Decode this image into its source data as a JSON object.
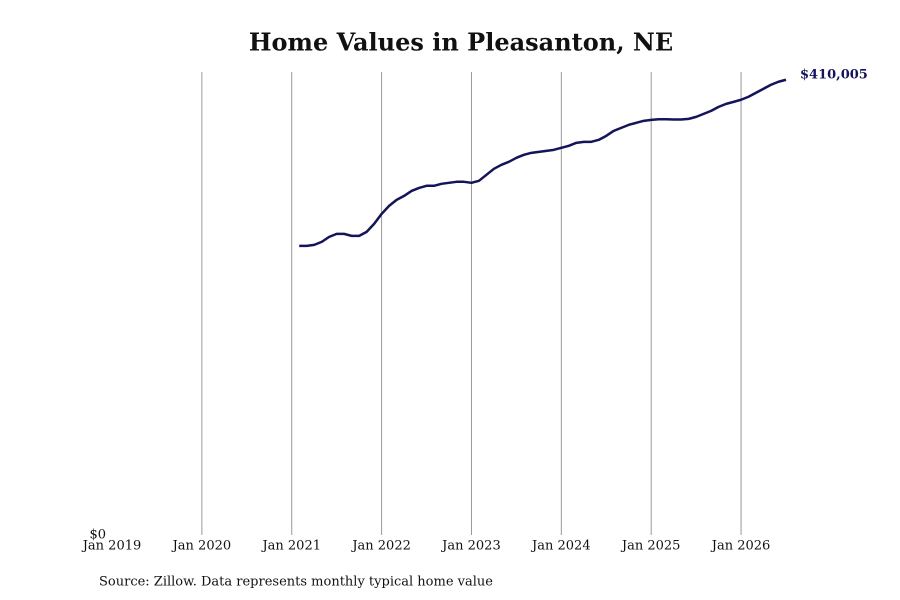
{
  "chart_data": {
    "type": "line",
    "title": "Home Values in Pleasanton, NE",
    "source": "Source: Zillow. Data represents monthly typical home value",
    "x": [
      "2021-02",
      "2021-03",
      "2021-04",
      "2021-05",
      "2021-06",
      "2021-07",
      "2021-08",
      "2021-09",
      "2021-10",
      "2021-11",
      "2021-12",
      "2022-01",
      "2022-02",
      "2022-03",
      "2022-04",
      "2022-05",
      "2022-06",
      "2022-07",
      "2022-08",
      "2022-09",
      "2022-10",
      "2022-11",
      "2022-12",
      "2023-01",
      "2023-02",
      "2023-03",
      "2023-04",
      "2023-05",
      "2023-06",
      "2023-07",
      "2023-08",
      "2023-09",
      "2023-10",
      "2023-11",
      "2023-12",
      "2024-01",
      "2024-02",
      "2024-03",
      "2024-04",
      "2024-05",
      "2024-06",
      "2024-07",
      "2024-08",
      "2024-09",
      "2024-10",
      "2024-11",
      "2024-12",
      "2025-01",
      "2025-02",
      "2025-03",
      "2025-04",
      "2025-05",
      "2025-06",
      "2025-07",
      "2025-08",
      "2025-09",
      "2025-10",
      "2025-11",
      "2025-12",
      "2026-01",
      "2026-02",
      "2026-03",
      "2026-04",
      "2026-05",
      "2026-06",
      "2026-07"
    ],
    "series": [
      {
        "name": "Home Value",
        "color": "#14145a",
        "values": [
          260400,
          260400,
          261300,
          264000,
          268500,
          271200,
          271200,
          269400,
          269400,
          273000,
          280200,
          289200,
          296400,
          301800,
          305400,
          309900,
          312600,
          314500,
          314500,
          316300,
          317200,
          318100,
          318100,
          317200,
          319000,
          324400,
          329800,
          333400,
          336100,
          339700,
          342400,
          344200,
          345100,
          346000,
          346900,
          348700,
          350500,
          353200,
          354100,
          354100,
          355900,
          359500,
          364000,
          366700,
          369400,
          371200,
          373000,
          373900,
          374400,
          374400,
          374200,
          374200,
          374800,
          376600,
          379300,
          382000,
          385600,
          388300,
          390100,
          392000,
          394700,
          398300,
          401900,
          405500,
          408200,
          410005
        ],
        "value_labels": [
          null,
          null,
          null,
          null,
          null,
          null,
          null,
          null,
          null,
          null,
          null,
          null,
          null,
          null,
          null,
          null,
          null,
          null,
          null,
          null,
          null,
          null,
          null,
          null,
          null,
          null,
          null,
          null,
          null,
          null,
          null,
          null,
          null,
          null,
          null,
          null,
          null,
          null,
          null,
          null,
          null,
          null,
          null,
          null,
          null,
          null,
          null,
          null,
          null,
          null,
          null,
          null,
          null,
          null,
          null,
          null,
          null,
          null,
          null,
          null,
          null,
          null,
          null,
          null,
          null,
          "$410,005"
        ]
      }
    ],
    "xlim": [
      "2019-01",
      "2026-07"
    ],
    "xticks": [
      {
        "value": "2019-01",
        "label": "Jan 2019"
      },
      {
        "value": "2020-01",
        "label": "Jan 2020"
      },
      {
        "value": "2021-01",
        "label": "Jan 2021"
      },
      {
        "value": "2022-01",
        "label": "Jan 2022"
      },
      {
        "value": "2023-01",
        "label": "Jan 2023"
      },
      {
        "value": "2024-01",
        "label": "Jan 2024"
      },
      {
        "value": "2025-01",
        "label": "Jan 2025"
      },
      {
        "value": "2026-01",
        "label": "Jan 2026"
      }
    ],
    "ylim": [
      0,
      417000
    ],
    "yticks": [
      {
        "value": 0,
        "label": "$0"
      }
    ],
    "grid": true
  }
}
